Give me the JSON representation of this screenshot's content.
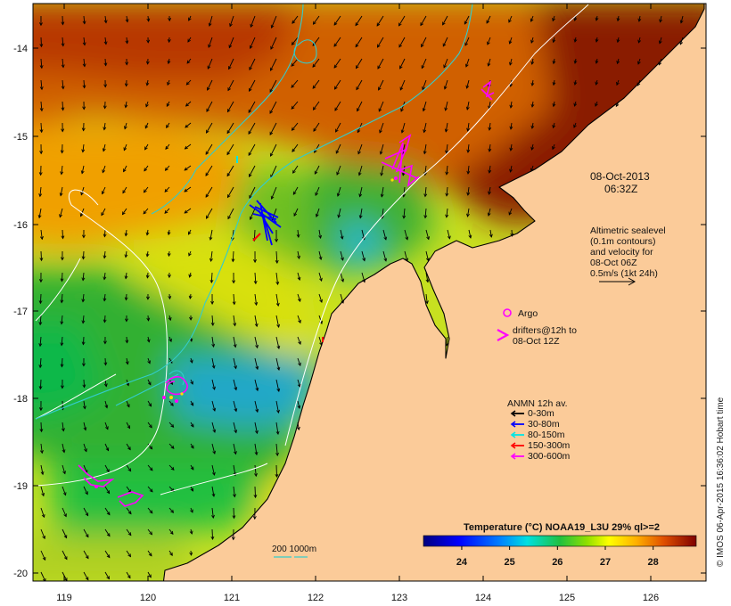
{
  "map": {
    "date": "08-Oct-2013",
    "time": "06:32Z",
    "altimetry": [
      "Altimetric sealevel",
      "(0.1m contours)",
      "and velocity for",
      "08-Oct 06Z",
      "0.5m/s (1kt 24h)"
    ],
    "argo_label": "Argo",
    "drifters": [
      "drifters@12h to",
      "08-Oct 12Z"
    ],
    "anmn": {
      "title": "ANMN 12h av.",
      "items": [
        {
          "label": "0-30m",
          "color": "#000000"
        },
        {
          "label": "30-80m",
          "color": "#0000ff"
        },
        {
          "label": "80-150m",
          "color": "#00e5e5"
        },
        {
          "label": "150-300m",
          "color": "#ff0000"
        },
        {
          "label": "300-600m",
          "color": "#ff00ff"
        }
      ]
    },
    "isobath_label": "200  1000m",
    "colorbar": {
      "title": "Temperature (°C) NOAA19_L3U 29% ql>=2",
      "ticks": [
        "24",
        "25",
        "26",
        "27",
        "28"
      ],
      "min": 23.2,
      "max": 28.9
    },
    "credit": "© IMOS 06-Apr-2015 16:36:02 Hobart time",
    "x_axis": {
      "ticks": [
        "119",
        "120",
        "121",
        "122",
        "123",
        "124",
        "125",
        "126"
      ],
      "min": 118.65,
      "max": 126.7
    },
    "y_axis": {
      "ticks": [
        "-14",
        "-15",
        "-16",
        "-17",
        "-18",
        "-19",
        "-20"
      ],
      "max": -13.55,
      "min": -20.05
    },
    "colors": {
      "land": "#fbcb99",
      "coast": "#000000",
      "contour": "#ffffff",
      "shelf_isobath": "#33cccc",
      "drifter": "#ff00ff"
    }
  }
}
